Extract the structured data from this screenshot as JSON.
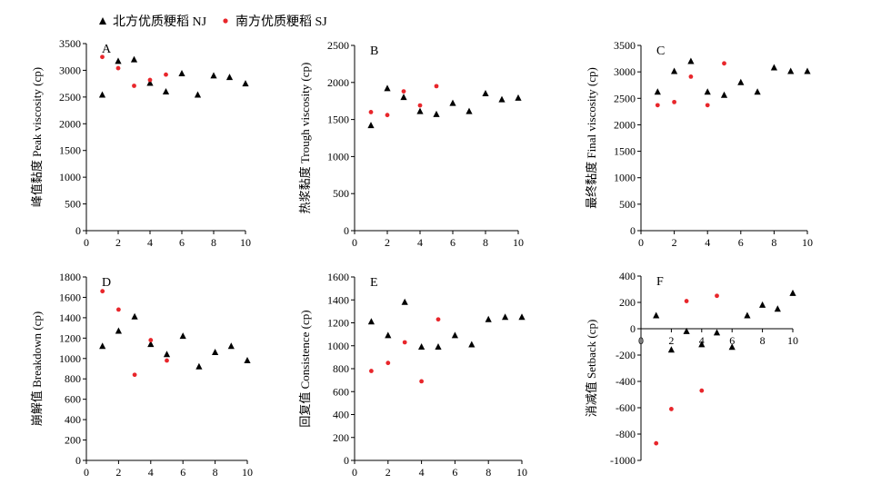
{
  "legend": {
    "nj_label": "北方优质粳稻 NJ",
    "sj_label": "南方优质粳稻 SJ"
  },
  "colors": {
    "nj": "#000000",
    "sj": "#e8262b"
  },
  "chart_data": [
    {
      "type": "scatter",
      "panel": "A",
      "ylabel": "峰值黏度 Peak viscosity (cp)",
      "xlim": [
        0,
        10
      ],
      "ylim": [
        0,
        3500
      ],
      "xticks": [
        0,
        2,
        4,
        6,
        8,
        10
      ],
      "yticks": [
        0,
        500,
        1000,
        1500,
        2000,
        2500,
        3000,
        3500
      ],
      "series": [
        {
          "name": "北方优质粳稻 NJ",
          "marker": "triangle",
          "x": [
            1,
            2,
            3,
            4,
            5,
            6,
            7,
            8,
            9,
            10
          ],
          "y": [
            2540,
            3170,
            3200,
            2760,
            2600,
            2940,
            2540,
            2900,
            2870,
            2750
          ]
        },
        {
          "name": "南方优质粳稻 SJ",
          "marker": "circle",
          "x": [
            1,
            2,
            3,
            4,
            5
          ],
          "y": [
            3250,
            3040,
            2710,
            2820,
            2920
          ]
        }
      ]
    },
    {
      "type": "scatter",
      "panel": "B",
      "ylabel": "热浆黏度 Trough viscosity (cp)",
      "xlim": [
        0,
        10
      ],
      "ylim": [
        0,
        2500
      ],
      "xticks": [
        0,
        2,
        4,
        6,
        8,
        10
      ],
      "yticks": [
        0,
        500,
        1000,
        1500,
        2000,
        2500
      ],
      "series": [
        {
          "name": "北方优质粳稻 NJ",
          "marker": "triangle",
          "x": [
            1,
            2,
            3,
            4,
            5,
            6,
            7,
            8,
            9,
            10
          ],
          "y": [
            1420,
            1920,
            1800,
            1610,
            1570,
            1720,
            1610,
            1850,
            1770,
            1790
          ]
        },
        {
          "name": "南方优质粳稻 SJ",
          "marker": "circle",
          "x": [
            1,
            2,
            3,
            4,
            5
          ],
          "y": [
            1600,
            1560,
            1880,
            1690,
            1950
          ]
        }
      ]
    },
    {
      "type": "scatter",
      "panel": "C",
      "ylabel": "最终黏度 Final viscosity (cp)",
      "xlim": [
        0,
        10
      ],
      "ylim": [
        0,
        3500
      ],
      "xticks": [
        0,
        2,
        4,
        6,
        8,
        10
      ],
      "yticks": [
        0,
        500,
        1000,
        1500,
        2000,
        2500,
        3000,
        3500
      ],
      "series": [
        {
          "name": "北方优质粳稻 NJ",
          "marker": "triangle",
          "x": [
            1,
            2,
            3,
            4,
            5,
            6,
            7,
            8,
            9,
            10
          ],
          "y": [
            2620,
            3010,
            3200,
            2620,
            2560,
            2800,
            2620,
            3080,
            3010,
            3010
          ]
        },
        {
          "name": "南方优质粳稻 SJ",
          "marker": "circle",
          "x": [
            1,
            2,
            3,
            4,
            5
          ],
          "y": [
            2370,
            2430,
            2910,
            2370,
            3160
          ]
        }
      ]
    },
    {
      "type": "scatter",
      "panel": "D",
      "ylabel": "崩解值 Breakdown (cp)",
      "xlim": [
        0,
        10
      ],
      "ylim": [
        0,
        1800
      ],
      "xticks": [
        0,
        2,
        4,
        6,
        8,
        10
      ],
      "yticks": [
        0,
        200,
        400,
        600,
        800,
        1000,
        1200,
        1400,
        1600,
        1800
      ],
      "series": [
        {
          "name": "北方优质粳稻 NJ",
          "marker": "triangle",
          "x": [
            1,
            2,
            3,
            4,
            5,
            6,
            7,
            8,
            9,
            10
          ],
          "y": [
            1120,
            1270,
            1410,
            1140,
            1040,
            1220,
            920,
            1060,
            1120,
            980
          ]
        },
        {
          "name": "南方优质粳稻 SJ",
          "marker": "circle",
          "x": [
            1,
            2,
            3,
            4,
            5
          ],
          "y": [
            1660,
            1480,
            840,
            1180,
            980
          ]
        }
      ]
    },
    {
      "type": "scatter",
      "panel": "E",
      "ylabel": "回复值 Consistence (cp)",
      "xlim": [
        0,
        10
      ],
      "ylim": [
        0,
        1600
      ],
      "xticks": [
        0,
        2,
        4,
        6,
        8,
        10
      ],
      "yticks": [
        0,
        200,
        400,
        600,
        800,
        1000,
        1200,
        1400,
        1600
      ],
      "series": [
        {
          "name": "北方优质粳稻 NJ",
          "marker": "triangle",
          "x": [
            1,
            2,
            3,
            4,
            5,
            6,
            7,
            8,
            9,
            10
          ],
          "y": [
            1210,
            1090,
            1380,
            990,
            990,
            1090,
            1010,
            1230,
            1250,
            1250
          ]
        },
        {
          "name": "南方优质粳稻 SJ",
          "marker": "circle",
          "x": [
            1,
            2,
            3,
            4,
            5
          ],
          "y": [
            780,
            850,
            1030,
            690,
            1230
          ]
        }
      ]
    },
    {
      "type": "scatter",
      "panel": "F",
      "ylabel": "消减值 Setback (cp)",
      "xlim": [
        0,
        10
      ],
      "ylim": [
        -1000,
        400
      ],
      "xticks": [
        0,
        2,
        4,
        6,
        8,
        10
      ],
      "yticks": [
        -1000,
        -800,
        -600,
        -400,
        -200,
        0,
        200,
        400
      ],
      "series": [
        {
          "name": "北方优质粳稻 NJ",
          "marker": "triangle",
          "x": [
            1,
            2,
            3,
            4,
            5,
            6,
            7,
            8,
            9,
            10
          ],
          "y": [
            100,
            -160,
            -20,
            -120,
            -30,
            -140,
            100,
            180,
            150,
            270
          ]
        },
        {
          "name": "南方优质粳稻 SJ",
          "marker": "circle",
          "x": [
            1,
            2,
            3,
            4,
            5
          ],
          "y": [
            -870,
            -610,
            210,
            -470,
            250
          ]
        }
      ]
    }
  ]
}
